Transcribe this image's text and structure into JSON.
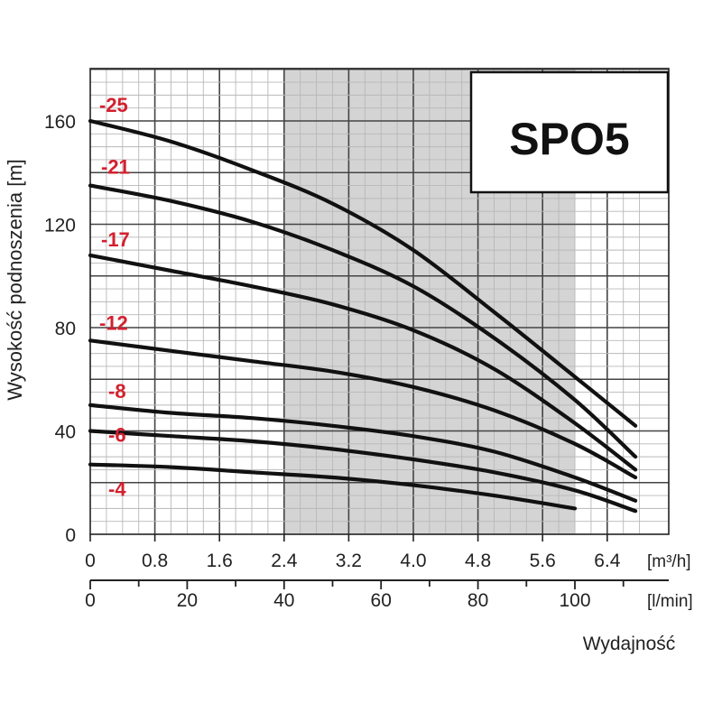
{
  "chart_data": {
    "type": "line",
    "title": "SPO5",
    "ylabel": "Wysokość podnoszenia [m]",
    "xlabel": "Wydajność",
    "x_unit_primary": "[m³/h]",
    "x_unit_secondary": "[l/min]",
    "xlim": [
      0,
      6.9
    ],
    "ylim": [
      0,
      180
    ],
    "x_ticks_primary": [
      "0",
      "0.8",
      "1.6",
      "2.4",
      "3.2",
      "4.0",
      "4.8",
      "5.6",
      "6.4"
    ],
    "x_ticks_secondary": [
      "0",
      "20",
      "40",
      "60",
      "80",
      "100"
    ],
    "y_ticks": [
      "0",
      "40",
      "80",
      "120",
      "160"
    ],
    "recommended_range": [
      2.4,
      6.0
    ],
    "grid": true,
    "label_color": "#d3202e",
    "curve_color": "#111111",
    "band_color": "#d4d4d4",
    "series": [
      {
        "name": "-25",
        "x": [
          0,
          1.0,
          2.0,
          3.0,
          4.0,
          5.0,
          5.8,
          6.75
        ],
        "values": [
          160,
          152,
          141,
          128,
          110,
          86,
          66,
          42
        ]
      },
      {
        "name": "-21",
        "x": [
          0,
          1.0,
          2.0,
          3.0,
          4.0,
          5.0,
          6.0,
          6.75
        ],
        "values": [
          135,
          129,
          121,
          110,
          96,
          76,
          52,
          30
        ]
      },
      {
        "name": "-17",
        "x": [
          0,
          1.0,
          2.0,
          3.0,
          4.0,
          5.0,
          6.0,
          6.75
        ],
        "values": [
          108,
          102,
          96,
          89,
          79,
          64,
          43,
          25
        ]
      },
      {
        "name": "-12",
        "x": [
          0,
          1.0,
          2.0,
          3.0,
          4.0,
          5.0,
          6.0,
          6.75
        ],
        "values": [
          75,
          71,
          67,
          63,
          57,
          48,
          35,
          22
        ]
      },
      {
        "name": "-8",
        "x": [
          0,
          1.0,
          2.0,
          3.0,
          4.0,
          5.0,
          6.0,
          6.75
        ],
        "values": [
          50,
          47,
          45,
          42,
          38,
          32,
          22,
          13
        ]
      },
      {
        "name": "-6",
        "x": [
          0,
          1.0,
          2.0,
          3.0,
          4.0,
          5.0,
          6.0,
          6.75
        ],
        "values": [
          40,
          38,
          36,
          33,
          29,
          24,
          17,
          9
        ]
      },
      {
        "name": "-4",
        "x": [
          0,
          1.0,
          2.0,
          3.0,
          4.0,
          5.0,
          6.0
        ],
        "values": [
          27,
          26,
          24,
          22,
          19,
          15,
          10
        ]
      }
    ]
  }
}
